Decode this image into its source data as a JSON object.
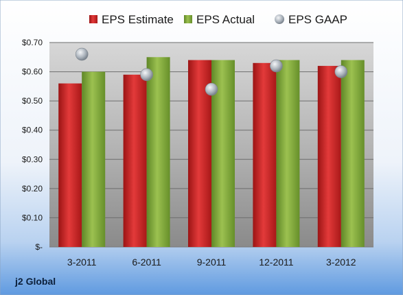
{
  "company_label": "j2 Global",
  "colors": {
    "estimate": "#d42a2a",
    "actual": "#86ad3e",
    "gaap": "#b8bfc7"
  },
  "chart_data": {
    "type": "bar",
    "categories": [
      "3-2011",
      "6-2011",
      "9-2011",
      "12-2011",
      "3-2012"
    ],
    "series": [
      {
        "name": "EPS Estimate",
        "type": "bar",
        "values": [
          0.56,
          0.59,
          0.64,
          0.63,
          0.62
        ]
      },
      {
        "name": "EPS Actual",
        "type": "bar",
        "values": [
          0.6,
          0.65,
          0.64,
          0.64,
          0.64
        ]
      },
      {
        "name": "EPS GAAP",
        "type": "scatter",
        "values": [
          0.66,
          0.59,
          0.54,
          0.62,
          0.6
        ]
      }
    ],
    "ylim": [
      0,
      0.7
    ],
    "yticks": [
      0,
      0.1,
      0.2,
      0.3,
      0.4,
      0.5,
      0.6,
      0.7
    ],
    "ytick_labels": [
      "$-",
      "$0.10",
      "$0.20",
      "$0.30",
      "$0.40",
      "$0.50",
      "$0.60",
      "$0.70"
    ],
    "legend_position": "top",
    "grid": true
  }
}
